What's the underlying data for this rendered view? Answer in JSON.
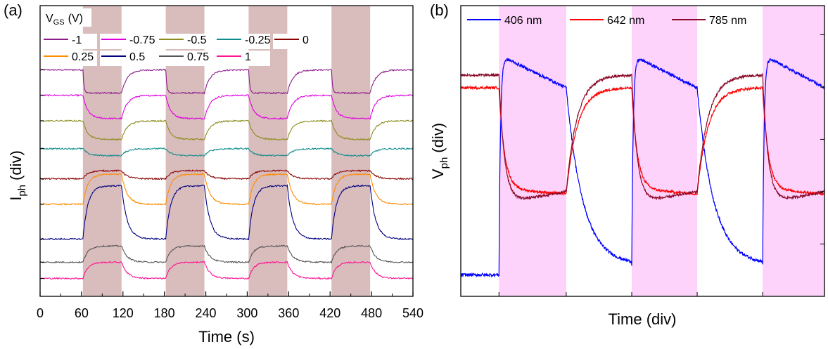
{
  "chart_data": [
    {
      "panel": "(a)",
      "type": "line",
      "xlabel": "Time (s)",
      "ylabel_main": "I",
      "ylabel_sub": "ph",
      "ylabel_unit": "(div)",
      "xlim": [
        0,
        540
      ],
      "xticks": [
        0,
        60,
        120,
        180,
        240,
        300,
        360,
        420,
        480,
        540
      ],
      "illumination_windows": [
        [
          62,
          118
        ],
        [
          182,
          238
        ],
        [
          302,
          358
        ],
        [
          422,
          478
        ]
      ],
      "legend_title_main": "V",
      "legend_title_sub": "GS",
      "legend_title_unit": "(V)",
      "series": [
        {
          "name": "-1",
          "color": "#8b1a8b",
          "baseline": 0.95,
          "step": -0.1,
          "shape": "step"
        },
        {
          "name": "-0.75",
          "color": "#e000e0",
          "baseline": 0.84,
          "step": -0.1,
          "shape": "rise"
        },
        {
          "name": "-0.5",
          "color": "#8c8c1c",
          "baseline": 0.73,
          "step": -0.08,
          "shape": "rise"
        },
        {
          "name": "-0.25",
          "color": "#0e8c8c",
          "baseline": 0.61,
          "step": -0.03,
          "shape": "rise"
        },
        {
          "name": "0",
          "color": "#8b0000",
          "baseline": 0.48,
          "step": 0.035,
          "shape": "rise"
        },
        {
          "name": "0.25",
          "color": "#ff8c00",
          "baseline": 0.37,
          "step": 0.13,
          "shape": "rise"
        },
        {
          "name": "0.5",
          "color": "#000080",
          "baseline": 0.22,
          "step": 0.23,
          "shape": "rise"
        },
        {
          "name": "0.75",
          "color": "#555555",
          "baseline": 0.12,
          "step": 0.07,
          "shape": "rise"
        },
        {
          "name": "1",
          "color": "#ff1493",
          "baseline": 0.05,
          "step": 0.07,
          "shape": "rise"
        }
      ]
    },
    {
      "panel": "(b)",
      "type": "line",
      "xlabel": "Time (div)",
      "ylabel_main": "V",
      "ylabel_sub": "ph",
      "ylabel_unit": "(div)",
      "illumination_windows": [
        [
          0.105,
          0.29
        ],
        [
          0.47,
          0.65
        ],
        [
          0.83,
          1.0
        ]
      ],
      "series": [
        {
          "name": "406 nm",
          "color": "#0000ff",
          "dark_level": 0.06,
          "light_level": 0.93,
          "light_end": 0.8,
          "dark_end": 0.1
        },
        {
          "name": "642 nm",
          "color": "#ff0000",
          "dark_level": 0.8,
          "light_level": 0.4,
          "light_end": 0.38,
          "dark_end": 0.8
        },
        {
          "name": "785 nm",
          "color": "#8b0a2a",
          "dark_level": 0.85,
          "light_level": 0.34,
          "light_end": 0.39,
          "dark_end": 0.85
        }
      ]
    }
  ]
}
